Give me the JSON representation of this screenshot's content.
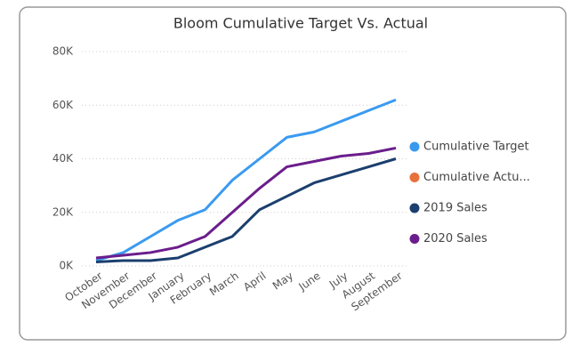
{
  "chart_data": {
    "type": "line",
    "title": "Bloom Cumulative Target Vs. Actual",
    "categories": [
      "October",
      "November",
      "December",
      "January",
      "February",
      "March",
      "April",
      "May",
      "June",
      "July",
      "August",
      "September"
    ],
    "series": [
      {
        "name": "Cumulative Target",
        "color": "#3a9af0",
        "values": [
          2000,
          5000,
          11000,
          17000,
          21000,
          32000,
          40000,
          48000,
          50000,
          54000,
          58000,
          62000
        ]
      },
      {
        "name": "Cumulative Actu...",
        "color": "#e8703a",
        "values": [
          null,
          null,
          null,
          null,
          null,
          null,
          null,
          null,
          null,
          null,
          null,
          null
        ]
      },
      {
        "name": "2019 Sales",
        "color": "#1b3f6e",
        "values": [
          1500,
          2000,
          2000,
          3000,
          7000,
          11000,
          21000,
          26000,
          31000,
          34000,
          37000,
          40000
        ]
      },
      {
        "name": "2020 Sales",
        "color": "#6b1d8c",
        "values": [
          3000,
          4000,
          5000,
          7000,
          11000,
          20000,
          29000,
          37000,
          39000,
          41000,
          42000,
          44000
        ]
      }
    ],
    "ylim": [
      0,
      80000
    ],
    "yticks": [
      {
        "value": 0,
        "label": "0K"
      },
      {
        "value": 20000,
        "label": "20K"
      },
      {
        "value": 40000,
        "label": "40K"
      },
      {
        "value": 60000,
        "label": "60K"
      },
      {
        "value": 80000,
        "label": "80K"
      }
    ],
    "grid": true,
    "legend": "right"
  }
}
